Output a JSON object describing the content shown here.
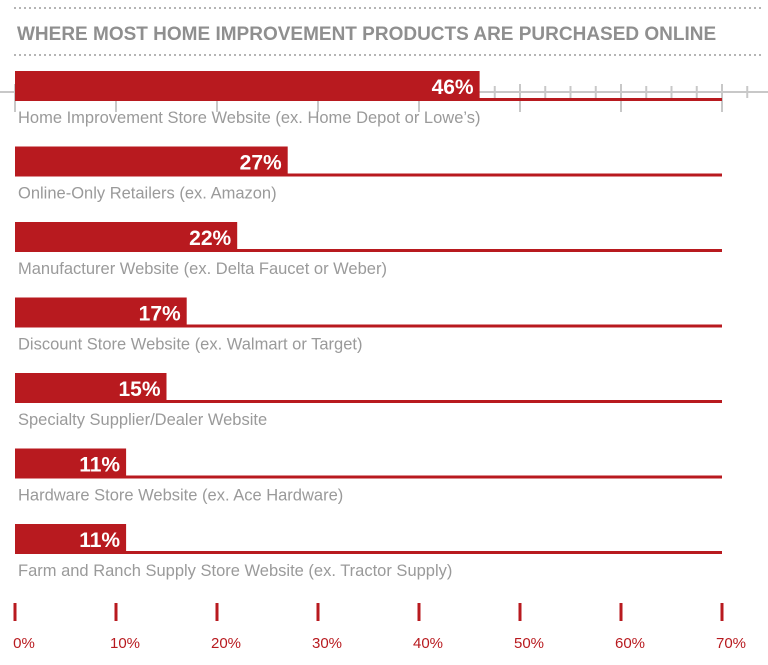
{
  "colors": {
    "bar": "#b81a1f",
    "title": "#8f8f8f",
    "label": "#9a9a9a",
    "tick": "#b81a1f",
    "dots": "#b5b5b5"
  },
  "chart_data": {
    "type": "bar",
    "orientation": "horizontal",
    "title": "WHERE MOST HOME IMPROVEMENT PRODUCTS ARE PURCHASED ONLINE",
    "categories": [
      "Home Improvement Store Website (ex. Home Depot or Lowe’s)",
      "Online-Only Retailers (ex. Amazon)",
      "Manufacturer Website (ex. Delta Faucet or Weber)",
      "Discount Store Website (ex. Walmart or Target)",
      "Specialty Supplier/Dealer Website",
      "Hardware Store Website (ex. Ace Hardware)",
      "Farm and Ranch Supply Store Website (ex. Tractor Supply)"
    ],
    "values": [
      46,
      27,
      22,
      17,
      15,
      11,
      11
    ],
    "value_labels": [
      "46%",
      "27%",
      "22%",
      "17%",
      "15%",
      "11%",
      "11%"
    ],
    "xlim": [
      0,
      70
    ],
    "x_ticks": [
      0,
      10,
      20,
      30,
      40,
      50,
      60,
      70
    ],
    "x_tick_labels": [
      "0%",
      "10%",
      "20%",
      "30%",
      "40%",
      "50%",
      "60%",
      "70%"
    ],
    "grid": false,
    "legend": "none"
  }
}
